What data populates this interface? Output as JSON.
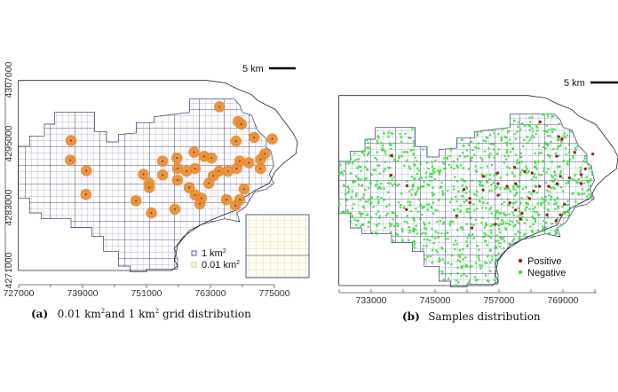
{
  "panel_a": {
    "caption_label": "(a)",
    "caption_text_1": "0.01 km",
    "caption_sup_1": "2",
    "caption_text_2": "and 1 km",
    "caption_sup_2": "2",
    "caption_text_3": " grid distribution",
    "scale_bar": "5 km",
    "x_ticks": [
      "727000",
      "739000",
      "751000",
      "763000",
      "775000"
    ],
    "y_ticks": [
      "4307000",
      "4295000",
      "4283000",
      "4271000"
    ],
    "legend": [
      {
        "label": "1 km",
        "sup": "2",
        "color": "#2b2f6b"
      },
      {
        "label": "0.01 km",
        "sup": "2",
        "color": "#d8b85a"
      }
    ]
  },
  "panel_b": {
    "caption_label": "(b)",
    "caption_text": "Samples distribution",
    "scale_bar": "5 km",
    "x_ticks": [
      "733000",
      "745000",
      "757000",
      "769000"
    ],
    "legend": [
      {
        "label": "Positive",
        "color": "#a01e1e"
      },
      {
        "label": "Negative",
        "color": "#3ddc3d"
      }
    ]
  },
  "colors": {
    "grid_1km": "#2b2f6b",
    "grid_001km": "#d8b85a",
    "buffer": "#e8892c",
    "positive": "#a01e1e",
    "negative": "#3ddc3d"
  },
  "chart_data": {
    "type": "scatter",
    "xlabel": "",
    "ylabel": "",
    "xlim": [
      727000,
      775000
    ],
    "ylim": [
      4271000,
      4307000
    ],
    "positive_locations": [
      [
        764800,
        4302000
      ],
      [
        768300,
        4299200
      ],
      [
        768900,
        4298700
      ],
      [
        771300,
        4296200
      ],
      [
        774700,
        4295900
      ],
      [
        767900,
        4295500
      ],
      [
        736900,
        4295600
      ],
      [
        736800,
        4291900
      ],
      [
        739800,
        4289900
      ],
      [
        739700,
        4285400
      ],
      [
        750500,
        4289200
      ],
      [
        751600,
        4287500
      ],
      [
        751600,
        4286700
      ],
      [
        749100,
        4284200
      ],
      [
        752000,
        4281900
      ],
      [
        756400,
        4282600
      ],
      [
        754100,
        4291700
      ],
      [
        754100,
        4289100
      ],
      [
        756800,
        4292300
      ],
      [
        756900,
        4290300
      ],
      [
        756900,
        4288100
      ],
      [
        760000,
        4293400
      ],
      [
        761900,
        4292600
      ],
      [
        763300,
        4292300
      ],
      [
        759100,
        4286700
      ],
      [
        760200,
        4285300
      ],
      [
        761100,
        4283600
      ],
      [
        761400,
        4284700
      ],
      [
        762800,
        4287500
      ],
      [
        763600,
        4288900
      ],
      [
        764700,
        4289800
      ],
      [
        766400,
        4289800
      ],
      [
        768000,
        4290300
      ],
      [
        768600,
        4291700
      ],
      [
        770300,
        4291400
      ],
      [
        772500,
        4292000
      ],
      [
        773300,
        4293100
      ],
      [
        772500,
        4290300
      ],
      [
        766100,
        4284400
      ],
      [
        767800,
        4283300
      ],
      [
        768600,
        4284400
      ],
      [
        769400,
        4286400
      ],
      [
        758600,
        4289800
      ],
      [
        760200,
        4290300
      ]
    ]
  }
}
